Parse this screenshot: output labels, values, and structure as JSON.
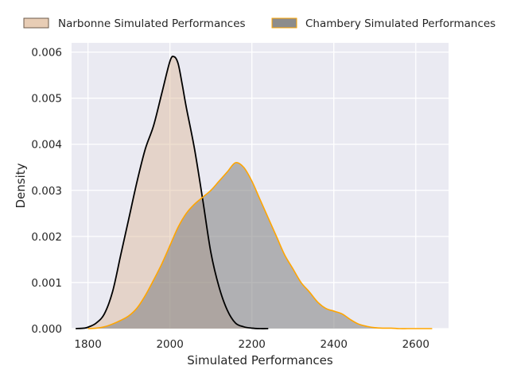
{
  "chart_data": {
    "type": "area",
    "title": "",
    "xlabel": "Simulated Performances",
    "ylabel": "Density",
    "xlim": [
      1760,
      2680
    ],
    "ylim": [
      0,
      0.0062
    ],
    "x_ticks": [
      1800,
      2000,
      2200,
      2400,
      2600
    ],
    "x_tick_labels": [
      "1800",
      "2000",
      "2200",
      "2400",
      "2600"
    ],
    "y_ticks": [
      0,
      0.001,
      0.002,
      0.003,
      0.004,
      0.005,
      0.006
    ],
    "y_tick_labels": [
      "0.000",
      "0.001",
      "0.002",
      "0.003",
      "0.004",
      "0.005",
      "0.006"
    ],
    "grid": true,
    "legend_position": "top, outside plot",
    "series": [
      {
        "name": "Narbonne Simulated Performances",
        "fill_color": "#deb896",
        "line_color": "#000000",
        "x": [
          1770,
          1790,
          1800,
          1820,
          1840,
          1860,
          1880,
          1900,
          1920,
          1940,
          1960,
          1980,
          2000,
          2010,
          2020,
          2030,
          2040,
          2060,
          2080,
          2100,
          2120,
          2140,
          2160,
          2180,
          2200,
          2220,
          2240
        ],
        "values": [
          0.0,
          1e-05,
          3e-05,
          0.00012,
          0.00032,
          0.0008,
          0.0016,
          0.0024,
          0.0032,
          0.0039,
          0.0044,
          0.0051,
          0.0058,
          0.0059,
          0.00575,
          0.0053,
          0.0048,
          0.0039,
          0.0028,
          0.00165,
          0.0009,
          0.0004,
          0.00012,
          4e-05,
          1e-05,
          0.0,
          0.0
        ]
      },
      {
        "name": "Chambery Simulated Performances",
        "fill_color": "#808080",
        "line_color": "#ffa500",
        "x": [
          1800,
          1820,
          1840,
          1860,
          1880,
          1900,
          1920,
          1940,
          1960,
          1980,
          2000,
          2020,
          2040,
          2060,
          2080,
          2100,
          2120,
          2140,
          2160,
          2180,
          2200,
          2220,
          2240,
          2260,
          2280,
          2300,
          2320,
          2340,
          2360,
          2380,
          2400,
          2420,
          2440,
          2460,
          2480,
          2500,
          2520,
          2540,
          2560,
          2580,
          2600,
          2620,
          2640
        ],
        "values": [
          0.0,
          1e-05,
          4e-05,
          0.0001,
          0.00018,
          0.00028,
          0.00045,
          0.00072,
          0.00105,
          0.0014,
          0.0018,
          0.0022,
          0.0025,
          0.0027,
          0.00285,
          0.003,
          0.0032,
          0.0034,
          0.0036,
          0.0035,
          0.0032,
          0.0028,
          0.0024,
          0.002,
          0.0016,
          0.0013,
          0.001,
          0.0008,
          0.00058,
          0.00044,
          0.00038,
          0.00032,
          0.0002,
          0.0001,
          5e-05,
          2e-05,
          1e-05,
          1e-05,
          0.0,
          0.0,
          0.0,
          0.0,
          0.0
        ]
      }
    ]
  }
}
